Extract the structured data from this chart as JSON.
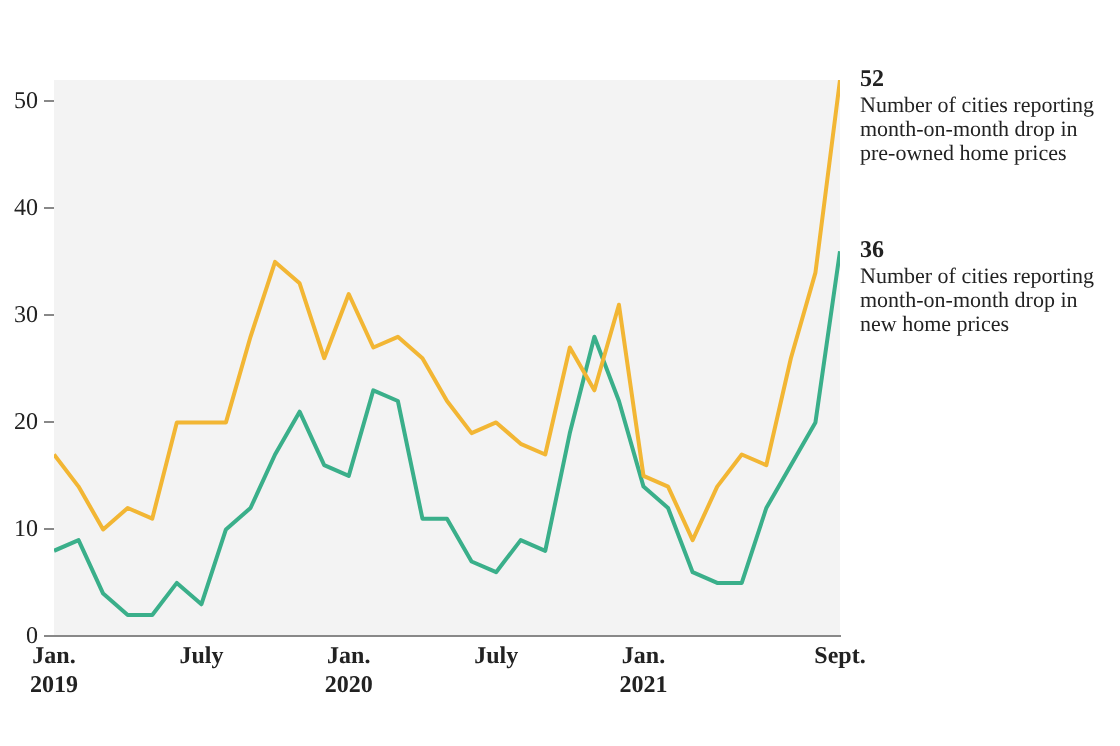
{
  "chart_data": {
    "type": "line",
    "x": [
      "2019-01",
      "2019-02",
      "2019-03",
      "2019-04",
      "2019-05",
      "2019-06",
      "2019-07",
      "2019-08",
      "2019-09",
      "2019-10",
      "2019-11",
      "2019-12",
      "2020-01",
      "2020-02",
      "2020-03",
      "2020-04",
      "2020-05",
      "2020-06",
      "2020-07",
      "2020-08",
      "2020-09",
      "2020-10",
      "2020-11",
      "2020-12",
      "2021-01",
      "2021-02",
      "2021-03",
      "2021-04",
      "2021-05",
      "2021-06",
      "2021-07",
      "2021-08",
      "2021-09"
    ],
    "series": [
      {
        "name": "Number of cities reporting month-on-month drop in pre-owned home prices",
        "color": "#f2b634",
        "values": [
          17,
          14,
          10,
          12,
          11,
          20,
          20,
          20,
          28,
          35,
          33,
          26,
          32,
          27,
          28,
          26,
          22,
          19,
          20,
          18,
          17,
          27,
          23,
          31,
          15,
          14,
          9,
          14,
          17,
          16,
          26,
          34,
          52
        ],
        "value_labels": [
          null,
          null,
          null,
          null,
          null,
          null,
          null,
          null,
          null,
          null,
          null,
          null,
          null,
          null,
          null,
          null,
          null,
          null,
          null,
          null,
          null,
          null,
          null,
          null,
          null,
          null,
          null,
          null,
          null,
          null,
          null,
          null,
          "52"
        ]
      },
      {
        "name": "Number of cities reporting month-on-month drop in new home prices",
        "color": "#3aaf8a",
        "values": [
          8,
          9,
          4,
          2,
          2,
          5,
          3,
          10,
          12,
          17,
          21,
          16,
          15,
          23,
          22,
          11,
          11,
          7,
          6,
          9,
          8,
          19,
          28,
          22,
          14,
          12,
          6,
          5,
          5,
          12,
          16,
          20,
          36
        ],
        "value_labels": [
          null,
          null,
          null,
          null,
          null,
          null,
          null,
          null,
          null,
          null,
          null,
          null,
          null,
          null,
          null,
          null,
          null,
          null,
          null,
          null,
          null,
          null,
          null,
          null,
          null,
          null,
          null,
          null,
          null,
          null,
          null,
          null,
          "36"
        ]
      }
    ],
    "xlim": [
      "2019-01",
      "2021-09"
    ],
    "xticks": [
      {
        "value": "2019-01",
        "label": "Jan.\n2019"
      },
      {
        "value": "2019-07",
        "label": "July"
      },
      {
        "value": "2020-01",
        "label": "Jan.\n2020"
      },
      {
        "value": "2020-07",
        "label": "July"
      },
      {
        "value": "2021-01",
        "label": "Jan.\n2021"
      },
      {
        "value": "2021-09",
        "label": "Sept."
      }
    ],
    "ylim": [
      0,
      52
    ],
    "yticks": [
      0,
      10,
      20,
      30,
      40,
      50
    ],
    "grid": false,
    "legend": false
  }
}
